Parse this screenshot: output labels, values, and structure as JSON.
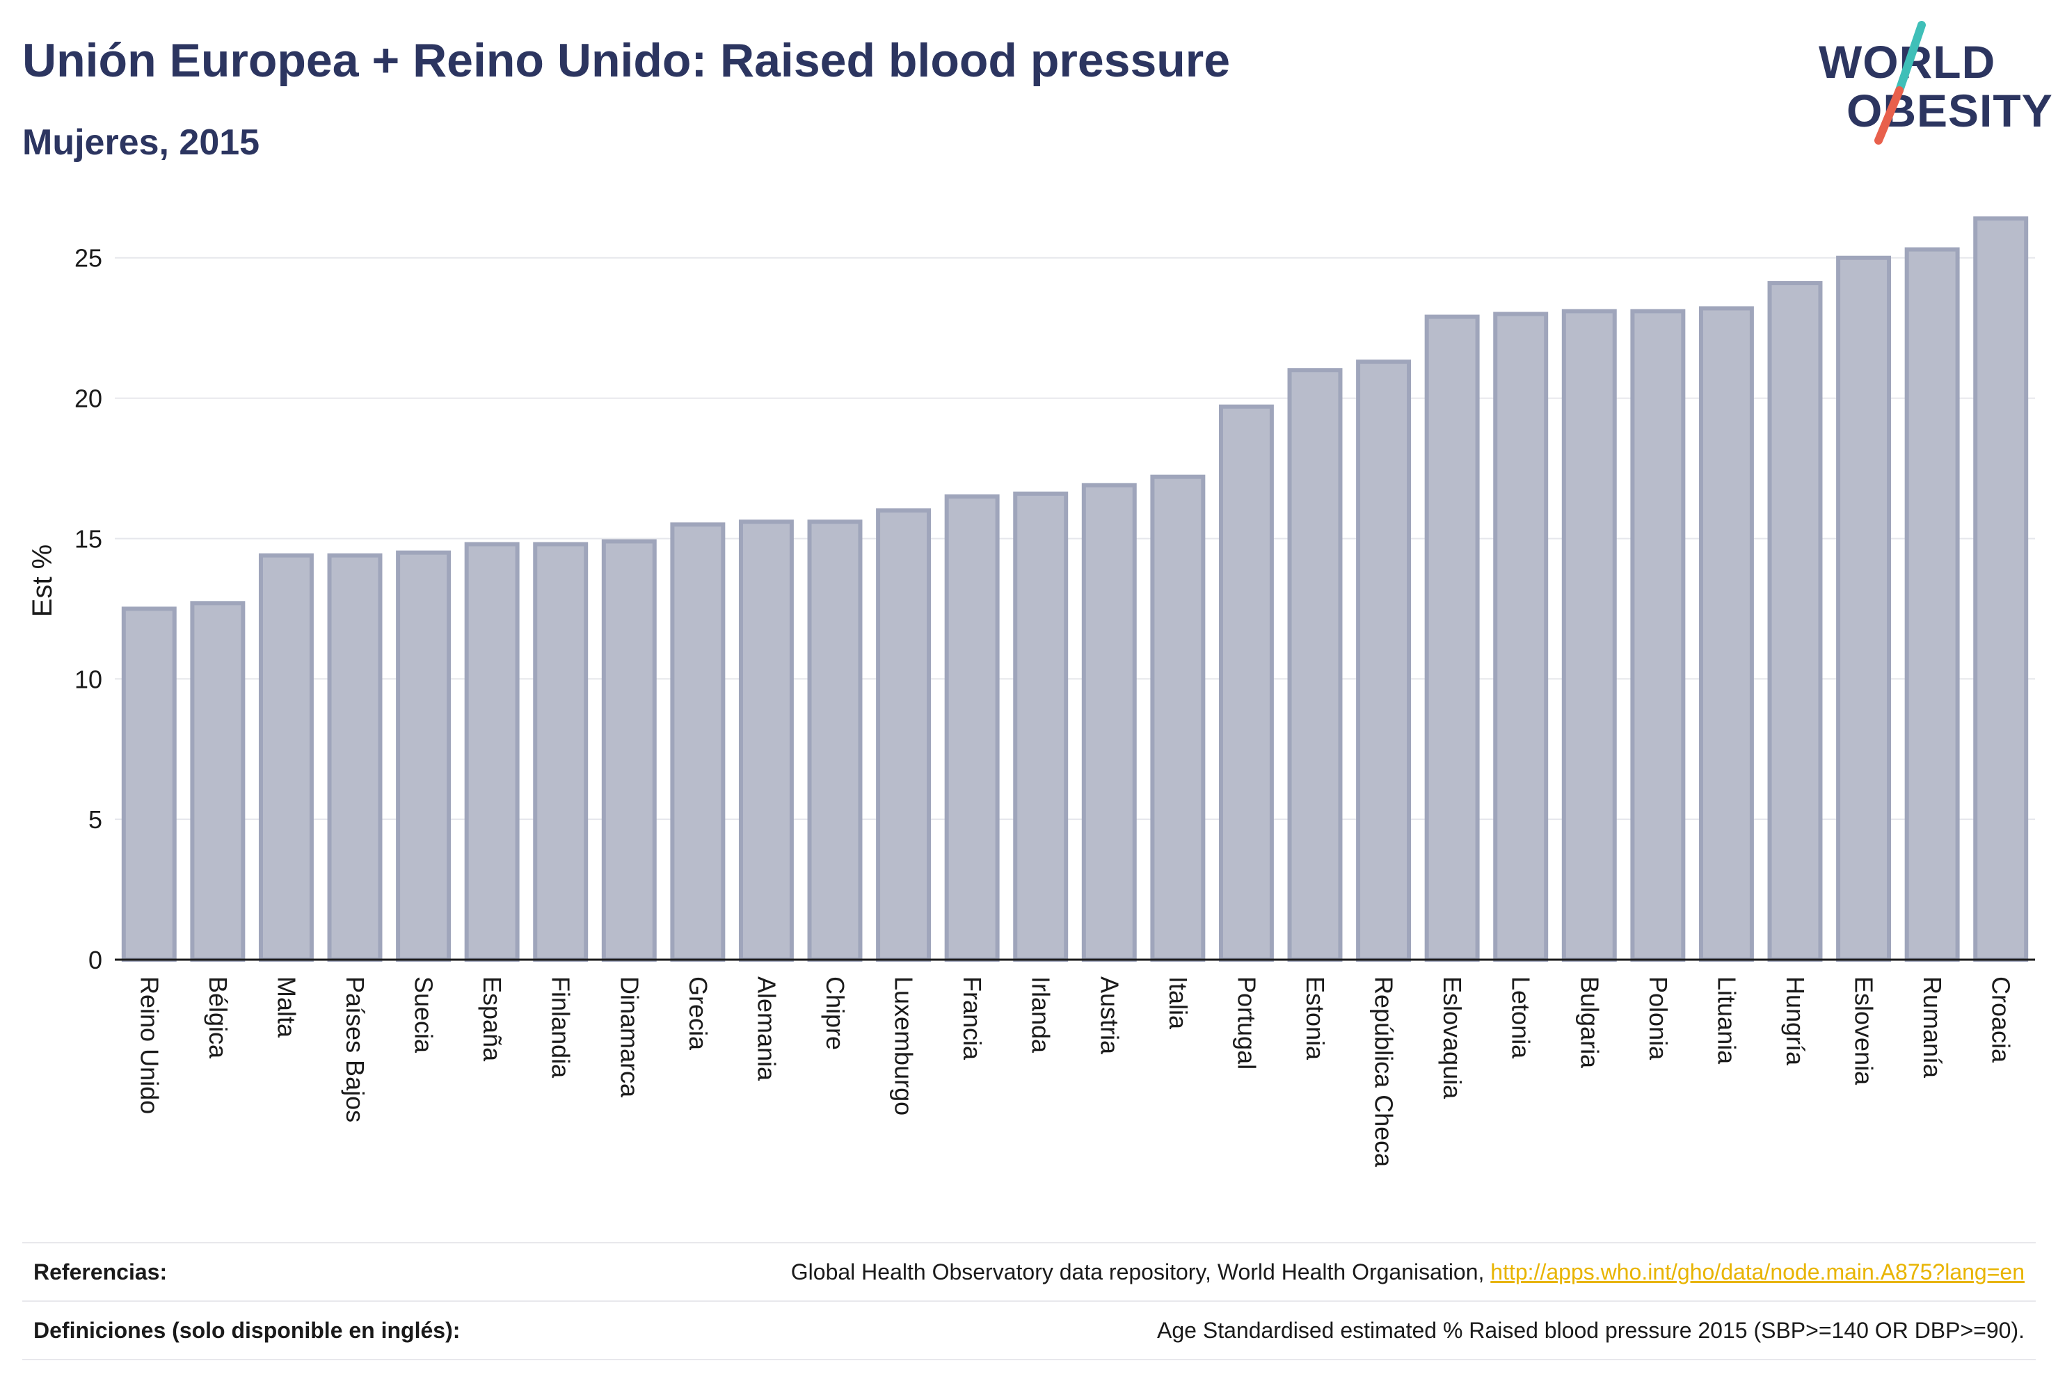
{
  "header": {
    "title": "Unión Europea + Reino Unido: Raised blood pressure",
    "subtitle": "Mujeres, 2015"
  },
  "logo": {
    "line1": "WORLD",
    "line2": "OBESITY",
    "slash_colors": [
      "#3fbfb8",
      "#e8604c"
    ]
  },
  "chart_data": {
    "type": "bar",
    "title": "Unión Europea + Reino Unido: Raised blood pressure",
    "subtitle": "Mujeres, 2015",
    "xlabel": "",
    "ylabel": "Est %",
    "ylim": [
      0,
      27
    ],
    "yticks": [
      0,
      5,
      10,
      15,
      20,
      25
    ],
    "grid": true,
    "bar_color": "#b8bccb",
    "bar_edge_color": "#9fa5bb",
    "categories": [
      "Reino Unido",
      "Bélgica",
      "Malta",
      "Países Bajos",
      "Suecia",
      "España",
      "Finlandia",
      "Dinamarca",
      "Grecia",
      "Alemania",
      "Chipre",
      "Luxemburgo",
      "Francia",
      "Irlanda",
      "Austria",
      "Italia",
      "Portugal",
      "Estonia",
      "República Checa",
      "Eslovaquia",
      "Letonia",
      "Bulgaria",
      "Polonia",
      "Lituania",
      "Hungría",
      "Eslovenia",
      "Rumanía",
      "Croacia"
    ],
    "values": [
      12.5,
      12.7,
      14.4,
      14.4,
      14.5,
      14.8,
      14.8,
      14.9,
      15.5,
      15.6,
      15.6,
      16.0,
      16.5,
      16.6,
      16.9,
      17.2,
      19.7,
      21.0,
      21.3,
      22.9,
      23.0,
      23.1,
      23.1,
      23.2,
      24.1,
      25.0,
      25.3,
      26.4
    ]
  },
  "footer": {
    "references_label": "Referencias:",
    "references_text": "Global Health Observatory data repository, World Health Organisation, ",
    "references_link": "http://apps.who.int/gho/data/node.main.A875?lang=en",
    "definitions_label": "Definiciones (solo disponible en inglés):",
    "definitions_text": "Age Standardised estimated % Raised blood pressure 2015 (SBP>=140 OR DBP>=90)."
  }
}
